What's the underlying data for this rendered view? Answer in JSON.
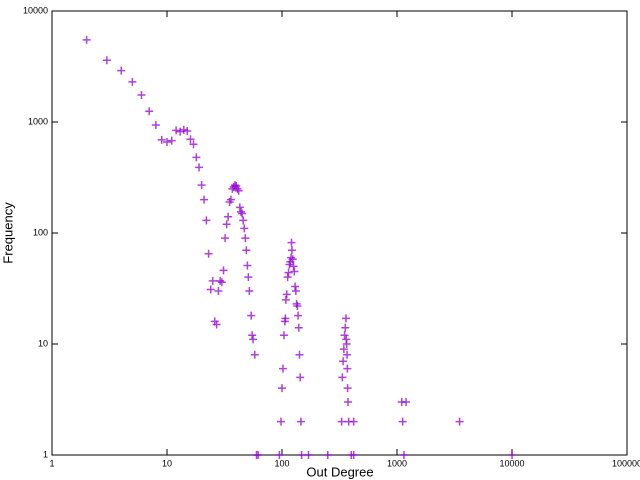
{
  "chart_data": {
    "type": "scatter",
    "x_label": "Out Degree",
    "y_label": "Frequency",
    "xscale": "log",
    "yscale": "log",
    "xlim": [
      1,
      100000
    ],
    "ylim": [
      1,
      10000
    ],
    "xticks": [
      1,
      10,
      100,
      1000,
      10000,
      100000
    ],
    "yticks": [
      1,
      10,
      100,
      1000,
      10000
    ],
    "color": "#9400d3",
    "x": [
      2,
      3,
      4,
      5,
      6,
      7,
      8,
      9,
      10,
      11,
      12,
      13,
      14,
      15,
      16,
      17,
      18,
      19,
      20,
      21,
      22,
      23,
      24,
      25,
      26,
      27,
      28,
      29,
      30,
      31,
      32,
      33,
      34,
      35,
      36,
      37,
      38,
      39,
      40,
      41,
      42,
      43,
      44,
      45,
      46,
      47,
      48,
      49,
      50,
      51,
      52,
      54,
      55,
      56,
      58,
      60,
      62,
      95,
      98,
      100,
      102,
      104,
      106,
      107,
      108,
      110,
      112,
      114,
      116,
      118,
      120,
      121,
      122,
      124,
      126,
      128,
      130,
      132,
      134,
      136,
      138,
      140,
      142,
      144,
      146,
      148,
      170,
      250,
      330,
      335,
      340,
      345,
      350,
      355,
      360,
      362,
      365,
      368,
      370,
      372,
      375,
      380,
      400,
      420,
      420,
      1100,
      1120,
      1150,
      1200,
      3500,
      10000
    ],
    "values": [
      5500,
      3600,
      2900,
      2300,
      1750,
      1250,
      940,
      690,
      660,
      680,
      840,
      820,
      850,
      830,
      700,
      630,
      480,
      390,
      270,
      200,
      130,
      65,
      31,
      37,
      16,
      15,
      30,
      37,
      36,
      46,
      90,
      120,
      140,
      190,
      200,
      250,
      260,
      270,
      265,
      250,
      240,
      170,
      155,
      150,
      130,
      110,
      90,
      70,
      51,
      40,
      30,
      18,
      12,
      11,
      8,
      1,
      1,
      1,
      2,
      4,
      6,
      12,
      16,
      17,
      25,
      28,
      40,
      44,
      52,
      55,
      60,
      82,
      70,
      58,
      50,
      45,
      33,
      30,
      23,
      22,
      18,
      14,
      8,
      5,
      2,
      1,
      1,
      1,
      2,
      5,
      7,
      9,
      12,
      14,
      17,
      11,
      10,
      8,
      6,
      4,
      3,
      2,
      1,
      2,
      1,
      3,
      2,
      1,
      3,
      2,
      1
    ]
  }
}
